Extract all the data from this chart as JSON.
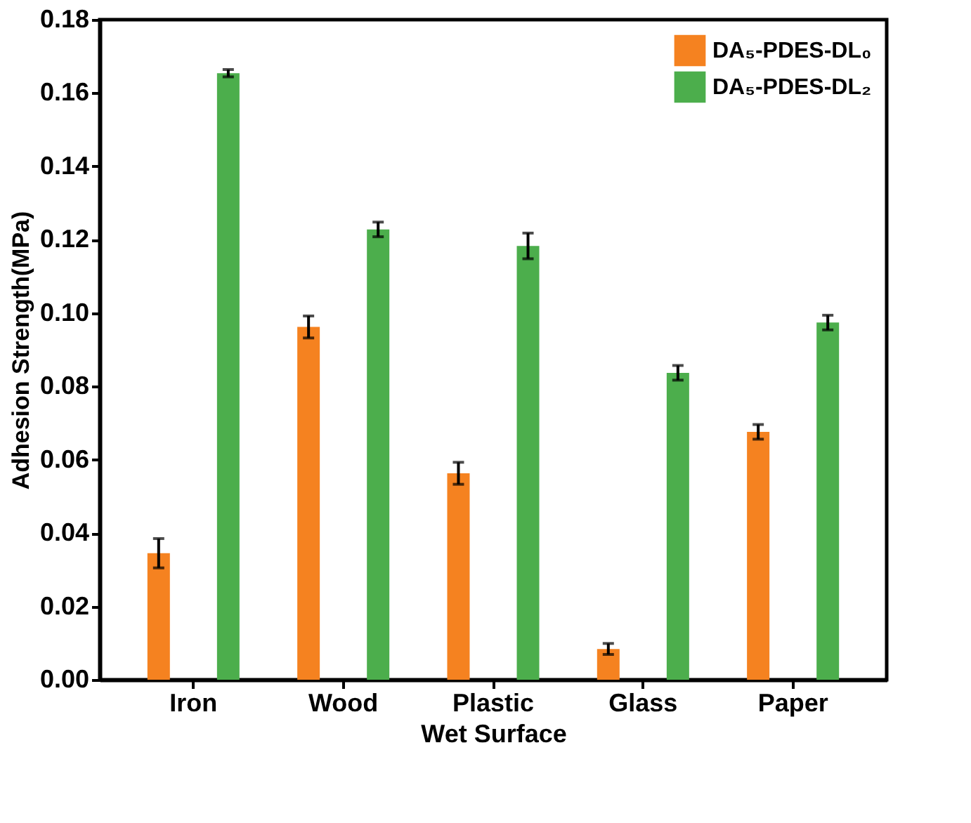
{
  "chart_data": {
    "type": "bar",
    "xlabel": "Wet Surface",
    "ylabel": "Adhesion Strength(MPa)",
    "categories": [
      "Iron",
      "Wood",
      "Plastic",
      "Glass",
      "Paper"
    ],
    "series": [
      {
        "name": "DA₅-PDES-DL₀",
        "color": "#f58220",
        "values": [
          0.0345,
          0.0962,
          0.0563,
          0.0084,
          0.0676
        ],
        "errors": [
          0.004,
          0.003,
          0.003,
          0.0015,
          0.002
        ]
      },
      {
        "name": "DA₅-PDES-DL₂",
        "color": "#4cae4c",
        "values": [
          0.1654,
          0.1228,
          0.1183,
          0.0837,
          0.0974
        ],
        "errors": [
          0.001,
          0.002,
          0.0035,
          0.002,
          0.002
        ]
      }
    ],
    "ylim": [
      0,
      0.18
    ],
    "yticks": [
      {
        "value": 0,
        "label": "0.00"
      },
      {
        "value": 0.02,
        "label": "0.02"
      },
      {
        "value": 0.04,
        "label": "0.04"
      },
      {
        "value": 0.06,
        "label": "0.06"
      },
      {
        "value": 0.08,
        "label": "0.08"
      },
      {
        "value": 0.1,
        "label": "0.10"
      },
      {
        "value": 0.12,
        "label": "0.12"
      },
      {
        "value": 0.14,
        "label": "0.14"
      },
      {
        "value": 0.16,
        "label": "0.16"
      },
      {
        "value": 0.18,
        "label": "0.18"
      }
    ],
    "legend": "top right",
    "grid": false
  }
}
